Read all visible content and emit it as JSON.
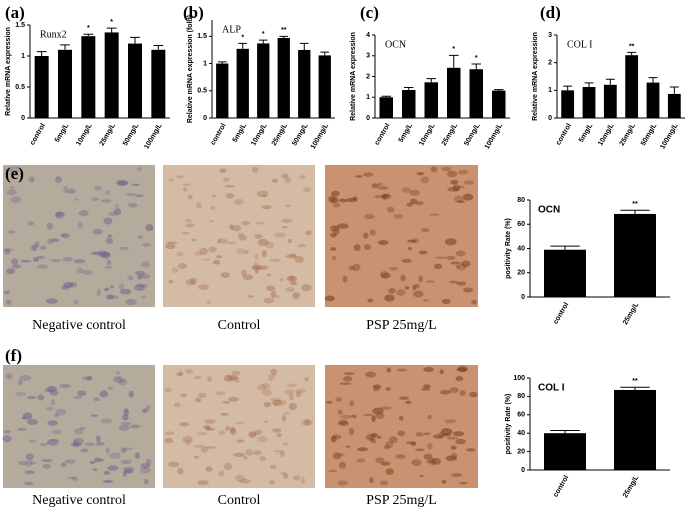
{
  "chart_data": [
    {
      "type": "bar",
      "panel_label": "(a)",
      "title": "Runx2",
      "ylabel": "Relative mRNA expression",
      "color": "#000000",
      "categories": [
        "control",
        "5mg/L",
        "10mg/L",
        "25mg/L",
        "50mg/L",
        "100mg/L"
      ],
      "values": [
        1.0,
        1.1,
        1.32,
        1.38,
        1.2,
        1.1
      ],
      "errors": [
        0.07,
        0.08,
        0.03,
        0.07,
        0.1,
        0.07
      ],
      "significance": [
        null,
        null,
        "*",
        "*",
        null,
        null
      ],
      "ylim": [
        0,
        1.5
      ],
      "yticks": [
        0,
        0.5,
        1,
        1.5
      ]
    },
    {
      "type": "bar",
      "panel_label": "(b)",
      "title": "ALP",
      "ylabel": "Relative mRNA expression (fold)",
      "color": "#000000",
      "categories": [
        "control",
        "5mg/L",
        "10mg/L",
        "25mg/L",
        "50mg/L",
        "100mg/L"
      ],
      "values": [
        1.0,
        1.27,
        1.37,
        1.47,
        1.25,
        1.15
      ],
      "errors": [
        0.03,
        0.1,
        0.06,
        0.03,
        0.12,
        0.06
      ],
      "significance": [
        null,
        "*",
        "*",
        "**",
        null,
        null
      ],
      "ylim": [
        0,
        1.8
      ],
      "yticks": [
        0,
        0.5,
        1,
        1.5
      ]
    },
    {
      "type": "bar",
      "panel_label": "(c)",
      "title": "OCN",
      "ylabel": "Relative mRNA expression",
      "color": "#000000",
      "categories": [
        "control",
        "5mg/L",
        "10mg/L",
        "25mg/L",
        "50mg/L",
        "100mg/L"
      ],
      "values": [
        1.0,
        1.35,
        1.72,
        2.42,
        2.35,
        1.32
      ],
      "errors": [
        0.05,
        0.12,
        0.18,
        0.6,
        0.25,
        0.05
      ],
      "significance": [
        null,
        null,
        null,
        "*",
        "*",
        null
      ],
      "ylim": [
        0,
        4
      ],
      "yticks": [
        0,
        1,
        2,
        3,
        4
      ]
    },
    {
      "type": "bar",
      "panel_label": "(d)",
      "title": "COL I",
      "ylabel": "Relative mRNA expression",
      "color": "#000000",
      "categories": [
        "control",
        "5mg/L",
        "10mg/L",
        "25mg/L",
        "50mg/L",
        "100mg/L"
      ],
      "values": [
        1.0,
        1.12,
        1.2,
        2.27,
        1.28,
        0.87
      ],
      "errors": [
        0.15,
        0.15,
        0.2,
        0.1,
        0.18,
        0.25
      ],
      "significance": [
        null,
        null,
        null,
        "**",
        null,
        null
      ],
      "ylim": [
        0,
        3
      ],
      "yticks": [
        0,
        1,
        2,
        3
      ]
    },
    {
      "type": "bar",
      "panel_label": "(e)",
      "title": "OCN",
      "ylabel": "positivity Rate (%)",
      "color": "#000000",
      "categories": [
        "control",
        "25mg/L"
      ],
      "values": [
        39,
        68.5
      ],
      "errors": [
        3,
        3
      ],
      "significance": [
        null,
        "**"
      ],
      "ylim": [
        0,
        80
      ],
      "yticks": [
        0,
        20,
        40,
        60,
        80
      ]
    },
    {
      "type": "bar",
      "panel_label": "(f)",
      "title": "COL I",
      "ylabel": "positivity Rate (%)",
      "color": "#000000",
      "categories": [
        "control",
        "25mg/L"
      ],
      "values": [
        40,
        87
      ],
      "errors": [
        3,
        3
      ],
      "significance": [
        null,
        "**"
      ],
      "ylim": [
        0,
        100
      ],
      "yticks": [
        0,
        20,
        40,
        60,
        80,
        100
      ]
    }
  ],
  "micrographs": [
    {
      "captions": [
        "Negative control",
        "Control",
        "PSP 25mg/L"
      ]
    },
    {
      "captions": [
        "Negative control",
        "Control",
        "PSP 25mg/L"
      ]
    }
  ]
}
